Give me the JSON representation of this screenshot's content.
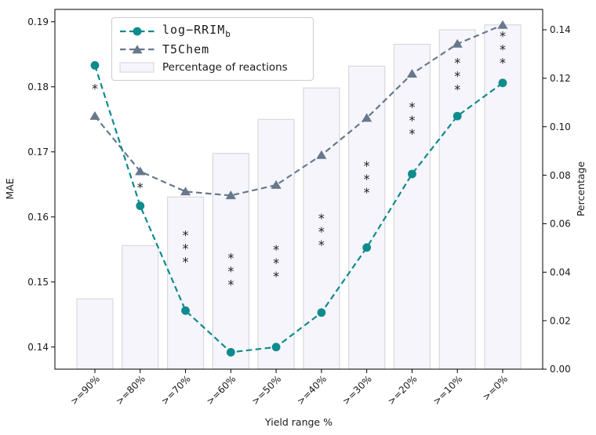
{
  "figure": {
    "xlabel": "Yield range %",
    "ylabel_left": "MAE",
    "ylabel_right": "Percentage"
  },
  "legend": {
    "items": [
      {
        "label": "log−RRIM",
        "label_sub": "b",
        "marker": "circle-dashed-line"
      },
      {
        "label": "T5Chem",
        "marker": "triangle-dashed-line"
      },
      {
        "label": "Percentage of reactions",
        "marker": "bar-patch"
      }
    ]
  },
  "colors": {
    "series1": "#0e8b8d",
    "series2": "#68788c",
    "bar_fill": "#f5f5fb",
    "bar_edge": "#d8d8de",
    "significance": "#d96f6f",
    "axis": "#000000",
    "text": "#1a1a1a"
  },
  "chart_data": {
    "type": "line+bar",
    "title": "",
    "xlabel": "Yield range %",
    "ylabel": "MAE",
    "y2label": "Percentage",
    "categories": [
      ">=90%",
      ">=80%",
      ">=70%",
      ">=60%",
      ">=50%",
      ">=40%",
      ">=30%",
      ">=20%",
      ">=10%",
      ">=0%"
    ],
    "series": [
      {
        "name": "log-RRIM_b",
        "type": "line",
        "axis": "left",
        "marker": "circle",
        "linestyle": "dashed",
        "values": [
          0.1833,
          0.1617,
          0.1456,
          0.1392,
          0.14,
          0.1453,
          0.1553,
          0.1666,
          0.1755,
          0.1806
        ]
      },
      {
        "name": "T5Chem",
        "type": "line",
        "axis": "left",
        "marker": "triangle",
        "linestyle": "dashed",
        "values": [
          0.1755,
          0.167,
          0.1639,
          0.1633,
          0.1649,
          0.1695,
          0.1752,
          0.182,
          0.1866,
          0.1895
        ]
      },
      {
        "name": "Percentage of reactions",
        "type": "bar",
        "axis": "right",
        "values": [
          0.029,
          0.051,
          0.071,
          0.089,
          0.103,
          0.116,
          0.125,
          0.134,
          0.14,
          0.142
        ]
      }
    ],
    "annotations": [
      {
        "category": ">=90%",
        "text": "*",
        "mae": 0.1798
      },
      {
        "category": ">=80%",
        "text": "*",
        "mae": 0.1646
      },
      {
        "category": ">=70%",
        "text": "***",
        "mae": 0.1552
      },
      {
        "category": ">=60%",
        "text": "***",
        "mae": 0.1517
      },
      {
        "category": ">=50%",
        "text": "***",
        "mae": 0.153
      },
      {
        "category": ">=40%",
        "text": "***",
        "mae": 0.1578
      },
      {
        "category": ">=30%",
        "text": "***",
        "mae": 0.1659
      },
      {
        "category": ">=20%",
        "text": "***",
        "mae": 0.1749
      },
      {
        "category": ">=10%",
        "text": "***",
        "mae": 0.1817
      },
      {
        "category": ">=0%",
        "text": "***",
        "mae": 0.1858
      }
    ],
    "yticks": [
      0.14,
      0.15,
      0.16,
      0.17,
      0.18,
      0.19
    ],
    "y2ticks": [
      0.0,
      0.02,
      0.04,
      0.06,
      0.08,
      0.1,
      0.12,
      0.14
    ],
    "ylim": [
      0.1366,
      0.1919
    ],
    "y2lim": [
      0.0,
      0.1484
    ],
    "grid": false,
    "legend_position": "upper left"
  }
}
